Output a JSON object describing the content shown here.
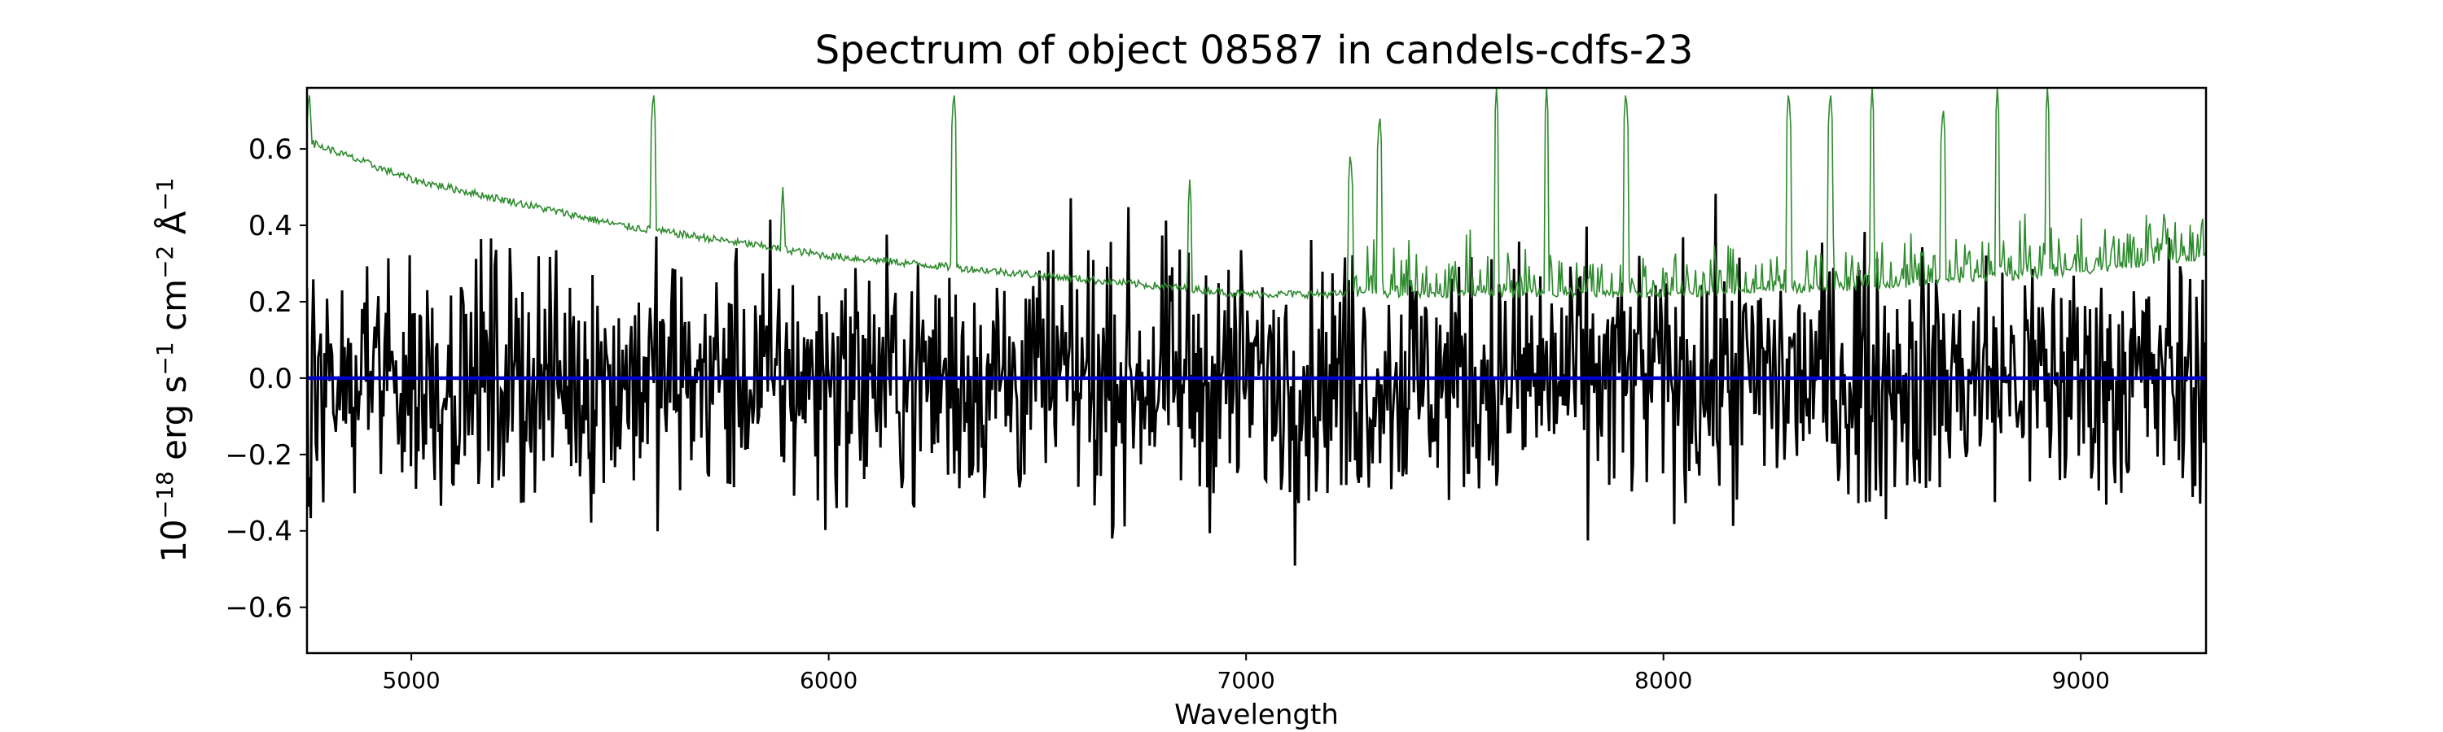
{
  "chart_data": {
    "type": "line",
    "title": "Spectrum of object 08587 in candels-cdfs-23",
    "xlabel": "Wavelength",
    "ylabel_parts": {
      "base": "10",
      "exp1": "−18",
      "erg": " erg s",
      "exp2": "−1",
      "cm": " cm",
      "exp3": "−2",
      "ang": " Å",
      "exp4": "−1"
    },
    "xlim": [
      4750,
      9300
    ],
    "ylim": [
      -0.72,
      0.76
    ],
    "x_ticks": [
      {
        "value": 5000,
        "label": "5000"
      },
      {
        "value": 6000,
        "label": "6000"
      },
      {
        "value": 7000,
        "label": "7000"
      },
      {
        "value": 8000,
        "label": "8000"
      },
      {
        "value": 9000,
        "label": "9000"
      }
    ],
    "y_ticks": [
      {
        "value": 0.6,
        "label": "0.6"
      },
      {
        "value": 0.4,
        "label": "0.4"
      },
      {
        "value": 0.2,
        "label": "0.2"
      },
      {
        "value": 0.0,
        "label": "0.0"
      },
      {
        "value": -0.2,
        "label": "−0.2"
      },
      {
        "value": -0.4,
        "label": "−0.4"
      },
      {
        "value": -0.6,
        "label": "−0.6"
      }
    ],
    "grid": false,
    "legend": "none",
    "series": [
      {
        "key": "flux",
        "color": "#000000",
        "noise_amplitude_approx": 0.18,
        "x_range": [
          4750,
          9300
        ]
      },
      {
        "key": "error",
        "color": "#2e8b2e",
        "baseline_anchors": [
          [
            4750,
            0.62
          ],
          [
            5000,
            0.52
          ],
          [
            5500,
            0.4
          ],
          [
            6000,
            0.32
          ],
          [
            6500,
            0.27
          ],
          [
            7000,
            0.22
          ],
          [
            7500,
            0.22
          ],
          [
            8000,
            0.22
          ],
          [
            8500,
            0.24
          ],
          [
            9000,
            0.28
          ],
          [
            9300,
            0.32
          ]
        ],
        "peaks": [
          [
            4755,
            0.76
          ],
          [
            5580,
            0.76
          ],
          [
            5890,
            0.5
          ],
          [
            6300,
            0.76
          ],
          [
            6865,
            0.52
          ],
          [
            7250,
            0.6
          ],
          [
            7320,
            0.7
          ],
          [
            7600,
            0.76
          ],
          [
            7720,
            0.76
          ],
          [
            7910,
            0.76
          ],
          [
            8300,
            0.76
          ],
          [
            8400,
            0.76
          ],
          [
            8500,
            0.76
          ],
          [
            8670,
            0.72
          ],
          [
            8800,
            0.76
          ],
          [
            8920,
            0.76
          ],
          [
            9200,
            0.45
          ],
          [
            9290,
            0.42
          ]
        ]
      },
      {
        "key": "zero",
        "color": "#0000cc",
        "values": [
          [
            4750,
            0.0
          ],
          [
            9300,
            0.0
          ]
        ]
      }
    ]
  }
}
